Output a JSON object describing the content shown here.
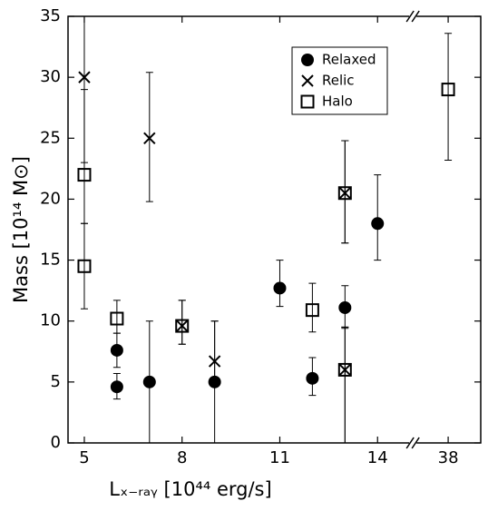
{
  "chart_data": {
    "type": "scatter",
    "xlabel": "Lₓ₋ᵣₐᵧ [10⁴⁴ erg/s]",
    "ylabel": "Mass [10¹⁴ M⊙]",
    "xlim": [
      4.5,
      39
    ],
    "xbreak": [
      15,
      37
    ],
    "ylim": [
      0,
      35
    ],
    "xticks": [
      5,
      8,
      11,
      14,
      38
    ],
    "yticks": [
      0,
      5,
      10,
      15,
      20,
      25,
      30,
      35
    ],
    "legend": "upper right",
    "series": [
      {
        "name": "Relaxed",
        "marker": "circle",
        "color": "#000000",
        "x": [
          6,
          6,
          7,
          9,
          11,
          12,
          13,
          14
        ],
        "values": [
          7.6,
          4.6,
          5.0,
          5.0,
          12.7,
          5.3,
          11.1,
          18.0
        ],
        "err_low": [
          1.4,
          1.0,
          5.0,
          5.0,
          1.5,
          1.4,
          1.7,
          3.0
        ],
        "err_high": [
          1.4,
          1.1,
          5.0,
          5.0,
          2.3,
          1.7,
          1.8,
          4.0
        ]
      },
      {
        "name": "Relic",
        "marker": "x",
        "color": "#000000",
        "x": [
          5,
          7,
          8,
          9,
          13,
          13
        ],
        "values": [
          30.0,
          25.0,
          9.6,
          6.7,
          20.5,
          6.0
        ],
        "err_low": [
          7.0,
          5.2,
          1.5,
          1.7,
          4.1,
          6.0
        ],
        "err_high": [
          7.0,
          5.4,
          2.1,
          3.3,
          4.3,
          3.5
        ]
      },
      {
        "name": "Halo",
        "marker": "square",
        "color": "#000000",
        "x": [
          5,
          5,
          6,
          8,
          12,
          13,
          13,
          38
        ],
        "values": [
          22.0,
          14.5,
          10.2,
          9.6,
          10.9,
          20.5,
          6.0,
          29.0
        ],
        "err_low": [
          4.0,
          3.5,
          1.2,
          1.5,
          1.8,
          4.1,
          6.0,
          5.8
        ],
        "err_high": [
          7.0,
          3.5,
          1.5,
          2.1,
          2.2,
          4.3,
          3.5,
          4.6
        ]
      }
    ]
  }
}
